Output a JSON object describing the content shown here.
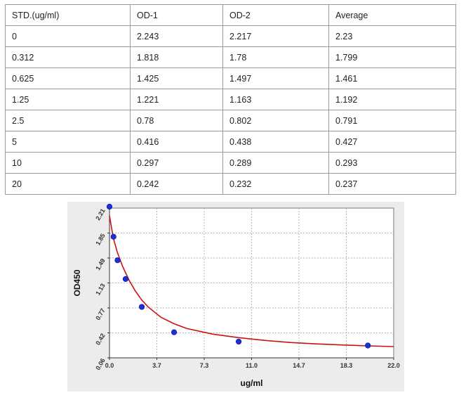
{
  "table": {
    "headers": [
      "STD.(ug/ml)",
      "OD-1",
      "OD-2",
      "Average"
    ],
    "rows": [
      [
        "0",
        "2.243",
        "2.217",
        "2.23"
      ],
      [
        "0.312",
        "1.818",
        "1.78",
        "1.799"
      ],
      [
        "0.625",
        "1.425",
        "1.497",
        "1.461"
      ],
      [
        "1.25",
        "1.221",
        "1.163",
        "1.192"
      ],
      [
        "2.5",
        "0.78",
        "0.802",
        "0.791"
      ],
      [
        "5",
        "0.416",
        "0.438",
        "0.427"
      ],
      [
        "10",
        "0.297",
        "0.289",
        "0.293"
      ],
      [
        "20",
        "0.242",
        "0.232",
        "0.237"
      ]
    ]
  },
  "chart_data": {
    "type": "scatter",
    "xlabel": "ug/ml",
    "ylabel": "OD450",
    "xlim": [
      0.0,
      22.0
    ],
    "ylim": [
      0.06,
      2.21
    ],
    "x_ticks": [
      "0.0",
      "3.7",
      "7.3",
      "11.0",
      "14.7",
      "18.3",
      "22.0"
    ],
    "y_ticks": [
      "0.06",
      "0.42",
      "0.77",
      "1.13",
      "1.49",
      "1.85",
      "2.21"
    ],
    "grid": true,
    "points": {
      "x": [
        0,
        0.312,
        0.625,
        1.25,
        2.5,
        5,
        10,
        20
      ],
      "y": [
        2.23,
        1.799,
        1.461,
        1.192,
        0.791,
        0.427,
        0.293,
        0.237
      ]
    },
    "fit_curve": {
      "x": [
        0,
        0.3,
        0.6,
        1,
        1.5,
        2,
        2.5,
        3,
        4,
        5,
        6,
        8,
        10,
        12,
        14,
        16,
        18,
        20,
        22
      ],
      "y": [
        2.1,
        1.78,
        1.58,
        1.38,
        1.18,
        1.02,
        0.89,
        0.79,
        0.64,
        0.55,
        0.48,
        0.4,
        0.35,
        0.31,
        0.28,
        0.26,
        0.245,
        0.232,
        0.222
      ]
    },
    "colors": {
      "points": "#1f2fd6",
      "curve": "#cc1111",
      "panel_bg": "#ececec",
      "plot_bg": "#ffffff",
      "grid": "#9a9a9a"
    }
  }
}
